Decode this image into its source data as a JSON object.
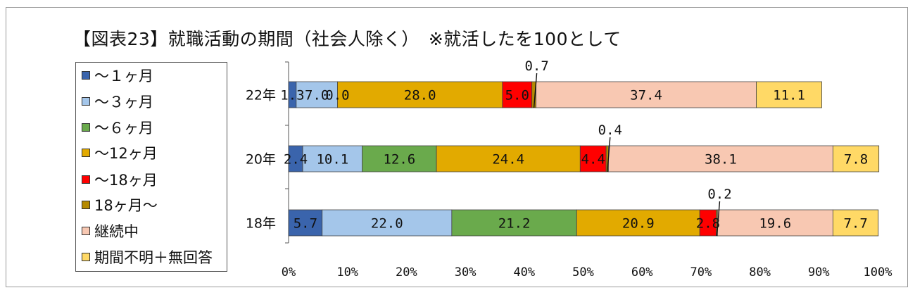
{
  "title": "【図表23】就職活動の期間（社会人除く）　※就活したを100として",
  "legend": [
    {
      "label": "～１ヶ月",
      "color": "#3a64ac"
    },
    {
      "label": "～３ヶ月",
      "color": "#a4c6ea"
    },
    {
      "label": "～６ヶ月",
      "color": "#6aaa4c"
    },
    {
      "label": "～12ヶ月",
      "color": "#e2aa00"
    },
    {
      "label": "～18ヶ月",
      "color": "#ff0000"
    },
    {
      "label": "18ヶ月～",
      "color": "#b58a00"
    },
    {
      "label": "継続中",
      "color": "#f8c8b2"
    },
    {
      "label": "期間不明＋無回答",
      "color": "#ffd966"
    }
  ],
  "chart_data": {
    "type": "bar",
    "orientation": "horizontal",
    "stacked": true,
    "percent": true,
    "categories": [
      "22年",
      "20年",
      "18年"
    ],
    "series": [
      {
        "name": "～１ヶ月",
        "values": [
          1.3,
          2.4,
          5.7
        ],
        "labels": [
          "1.3",
          "2.4",
          "5.7"
        ]
      },
      {
        "name": "～３ヶ月",
        "values": [
          7.0,
          10.1,
          22.0
        ],
        "labels": [
          "7.0",
          "10.1",
          "22.0"
        ]
      },
      {
        "name": "～６ヶ月",
        "values": [
          0.0,
          12.6,
          21.2
        ],
        "labels": [
          "0.0",
          "12.6",
          "21.2"
        ]
      },
      {
        "name": "～12ヶ月",
        "values": [
          28.0,
          24.4,
          20.9
        ],
        "labels": [
          "28.0",
          "24.4",
          "20.9"
        ]
      },
      {
        "name": "～18ヶ月",
        "values": [
          5.0,
          4.4,
          2.8
        ],
        "labels": [
          "5.0",
          "4.4",
          "2.8"
        ]
      },
      {
        "name": "18ヶ月～",
        "values": [
          0.7,
          0.4,
          0.2
        ],
        "labels": [
          "0.7",
          "0.4",
          "0.2"
        ]
      },
      {
        "name": "継続中",
        "values": [
          37.4,
          38.1,
          19.6
        ],
        "labels": [
          "37.4",
          "38.1",
          "19.6"
        ]
      },
      {
        "name": "期間不明＋無回答",
        "values": [
          11.1,
          7.8,
          7.7
        ],
        "labels": [
          "11.1",
          "7.8",
          "7.7"
        ]
      }
    ],
    "x_ticks": [
      "0%",
      "10%",
      "20%",
      "30%",
      "40%",
      "50%",
      "60%",
      "70%",
      "80%",
      "90%",
      "100%"
    ],
    "xlim": [
      0,
      100
    ],
    "legend_position": "left",
    "grid": false
  }
}
